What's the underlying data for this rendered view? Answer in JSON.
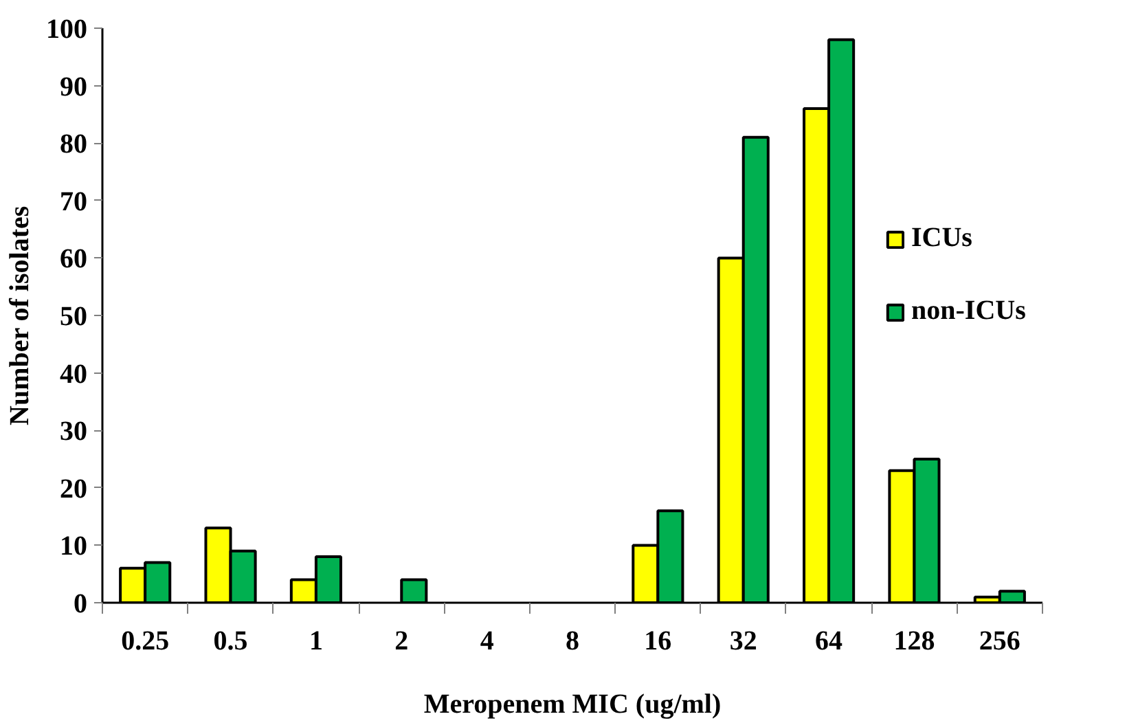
{
  "chart_data": {
    "type": "bar",
    "xlabel": "Meropenem MIC (ug/ml)",
    "ylabel": "Number of isolates",
    "categories": [
      "0.25",
      "0.5",
      "1",
      "2",
      "4",
      "8",
      "16",
      "32",
      "64",
      "128",
      "256"
    ],
    "series": [
      {
        "name": "ICUs",
        "color": "#ffff00",
        "values": [
          6,
          13,
          4,
          null,
          null,
          null,
          10,
          60,
          86,
          23,
          1
        ]
      },
      {
        "name": "non-ICUs",
        "color": "#00b050",
        "values": [
          7,
          9,
          8,
          4,
          null,
          null,
          16,
          81,
          98,
          25,
          2
        ]
      }
    ],
    "ylim": [
      0,
      100
    ],
    "yticks": [
      0,
      10,
      20,
      30,
      40,
      50,
      60,
      70,
      80,
      90,
      100
    ],
    "grid": false,
    "legend": "right"
  }
}
